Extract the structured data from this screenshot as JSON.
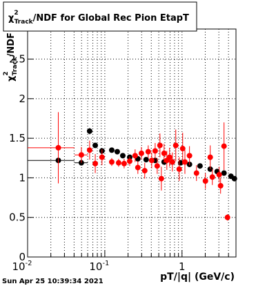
{
  "chart_data": {
    "type": "scatter",
    "title": {
      "symbol": "χ",
      "sup": "2",
      "sub": "Track",
      "text": "/NDF for Global Rec Pion EtapT"
    },
    "y_label": {
      "symbol": "χ",
      "sup": "2",
      "sub": "Track",
      "text": "/NDF"
    },
    "x_label": "pT/|q| (GeV/c)",
    "timestamp": "Sun Apr 25 10:39:34 2021",
    "x_log": true,
    "grid": true,
    "xlim": [
      0.01,
      5
    ],
    "ylim": [
      0,
      2.88
    ],
    "xticks": [
      {
        "value": 0.01,
        "label": "10",
        "exp": "-2"
      },
      {
        "value": 0.1,
        "label": "10",
        "exp": "-1"
      },
      1
    ],
    "xminorticks": [
      0.02,
      0.03,
      0.04,
      0.05,
      0.06,
      0.07,
      0.08,
      0.09,
      0.2,
      0.3,
      0.4,
      0.5,
      0.6,
      0.7,
      0.8,
      0.9,
      2,
      3,
      4
    ],
    "yticks": [
      0,
      0.5,
      1,
      1.5,
      2,
      2.5
    ],
    "series": [
      {
        "color": "#000000",
        "x": [
          0.025,
          0.0497,
          0.0636,
          0.0752,
          0.092,
          0.123,
          0.145,
          0.171,
          0.21,
          0.268,
          0.343,
          0.449,
          0.586,
          0.75,
          0.96,
          1.25,
          1.71,
          2.32,
          2.85,
          3.5,
          4.3,
          4.77
        ],
        "values": [
          1.22,
          1.19,
          1.59,
          1.41,
          1.34,
          1.35,
          1.33,
          1.28,
          1.26,
          1.24,
          1.23,
          1.22,
          1.2,
          1.2,
          1.19,
          1.17,
          1.15,
          1.11,
          1.08,
          1.06,
          1.02,
          0.99
        ],
        "yerr": [
          0.02,
          0.02,
          0.04,
          0.03,
          0.02,
          0.02,
          0.02,
          0.02,
          0.02,
          0.02,
          0.02,
          0.02,
          0.02,
          0.02,
          0.02,
          0.02,
          0.02,
          0.02,
          0.02,
          0.02,
          0.02,
          0.02
        ],
        "x_low": [
          0.01,
          0.0405,
          null,
          null,
          null,
          null,
          null,
          null,
          null,
          null,
          null,
          null,
          null,
          null,
          null,
          null,
          null,
          null,
          null,
          null,
          null,
          null
        ],
        "x_high": [
          0.0405,
          0.06,
          null,
          null,
          null,
          null,
          null,
          null,
          null,
          null,
          null,
          null,
          null,
          null,
          null,
          null,
          null,
          null,
          null,
          null,
          null,
          null
        ]
      },
      {
        "color": "#ff0000",
        "x": [
          0.025,
          0.0497,
          0.0636,
          0.0752,
          0.092,
          0.123,
          0.151,
          0.178,
          0.21,
          0.247,
          0.268,
          0.298,
          0.329,
          0.365,
          0.405,
          0.449,
          0.477,
          0.518,
          0.54,
          0.586,
          0.636,
          0.69,
          0.75,
          0.83,
          0.92,
          1.02,
          1.09,
          1.25,
          1.54,
          2.01,
          2.32,
          2.47,
          3.03,
          3.16,
          3.5,
          3.88
        ],
        "values": [
          1.38,
          1.29,
          1.35,
          1.18,
          1.26,
          1.2,
          1.19,
          1.18,
          1.21,
          1.28,
          1.13,
          1.31,
          1.09,
          1.33,
          1.22,
          1.34,
          1.15,
          1.41,
          0.99,
          1.31,
          1.22,
          1.26,
          1.2,
          1.41,
          1.11,
          1.37,
          1.2,
          1.28,
          1.06,
          0.96,
          1.26,
          1.01,
          1.04,
          0.9,
          1.4,
          0.5
        ],
        "yerr": [
          0.45,
          0.1,
          0.12,
          0.12,
          0.1,
          0.05,
          0.05,
          0.06,
          0.06,
          0.08,
          0.08,
          0.08,
          0.1,
          0.08,
          0.1,
          0.1,
          0.1,
          0.15,
          0.15,
          0.12,
          0.12,
          0.12,
          0.12,
          0.2,
          0.15,
          0.2,
          0.15,
          0.12,
          0.1,
          0.1,
          0.15,
          0.1,
          0.1,
          0.1,
          0.3,
          0.04
        ],
        "x_low": [
          0.01,
          0.0405,
          null,
          null,
          null,
          null,
          null,
          null,
          null,
          null,
          null,
          null,
          null,
          null,
          null,
          null,
          null,
          null,
          null,
          null,
          null,
          null,
          null,
          null,
          null,
          null,
          null,
          null,
          null,
          null,
          null,
          null,
          null,
          null,
          null,
          null
        ],
        "x_high": [
          0.0405,
          0.06,
          null,
          null,
          null,
          null,
          null,
          null,
          null,
          null,
          null,
          null,
          null,
          null,
          null,
          null,
          null,
          null,
          null,
          null,
          null,
          null,
          null,
          null,
          null,
          null,
          null,
          null,
          null,
          null,
          null,
          null,
          null,
          null,
          null,
          null
        ]
      }
    ]
  }
}
